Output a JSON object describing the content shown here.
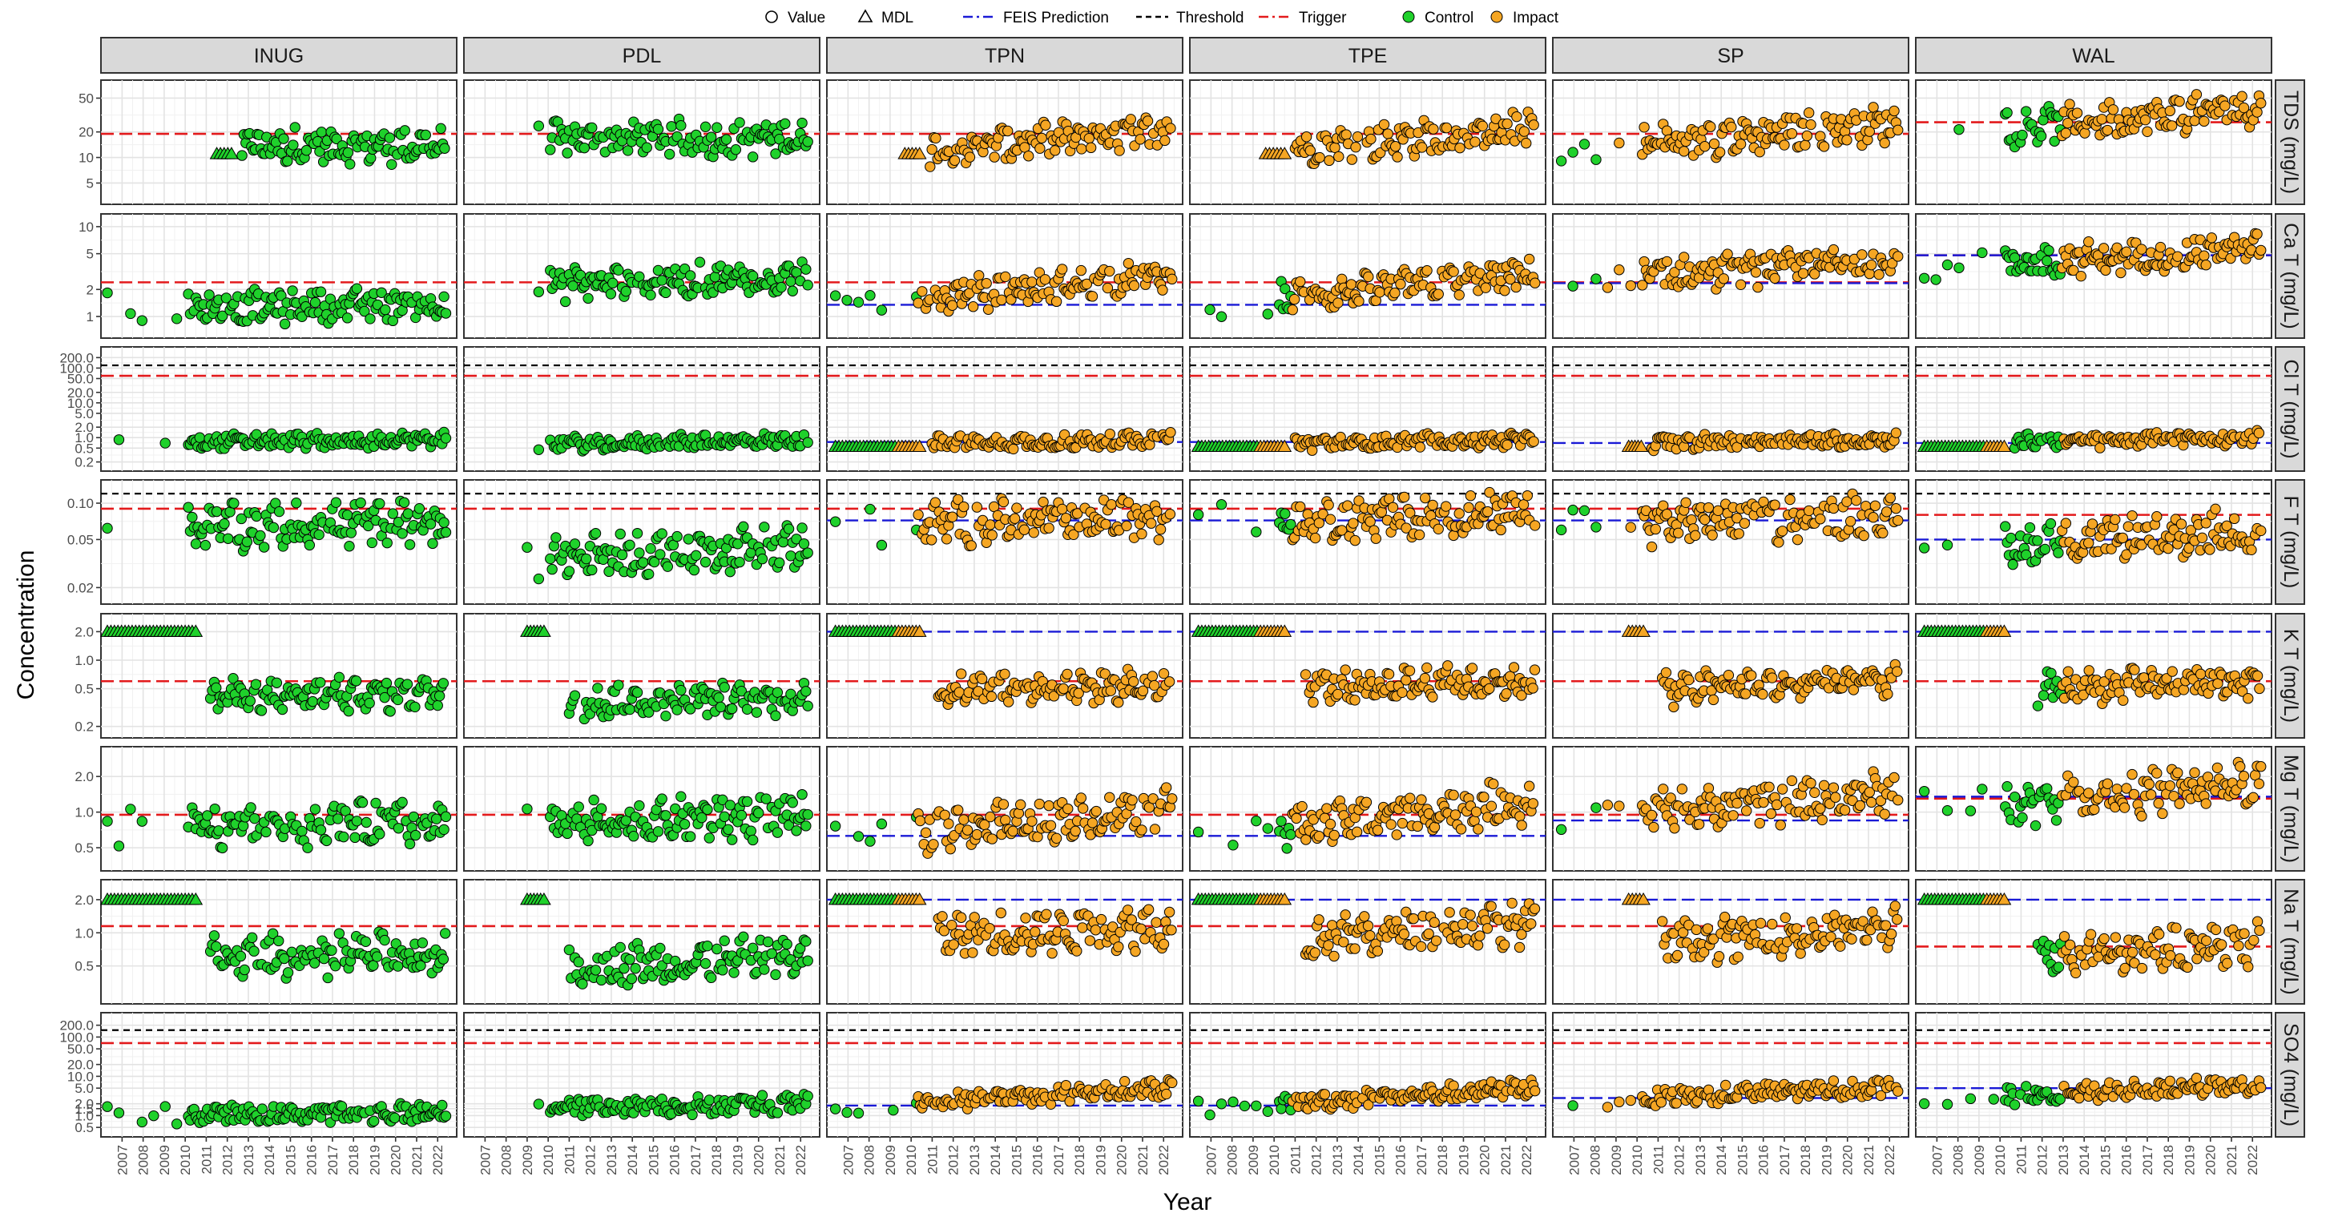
{
  "chart_data": {
    "type": "scatter",
    "xlabel": "Year",
    "ylabel": "Concentration",
    "x_ticks": [
      "2007",
      "2008",
      "2009",
      "2010",
      "2011",
      "2012",
      "2013",
      "2014",
      "2015",
      "2016",
      "2017",
      "2018",
      "2019",
      "2020",
      "2021",
      "2022"
    ],
    "x_range": [
      2006.3,
      2022.6
    ],
    "y_scale": "log",
    "grid": true,
    "legend_position": "top",
    "legend": [
      {
        "label": "Value",
        "kind": "shape",
        "shape": "circle"
      },
      {
        "label": "MDL",
        "kind": "shape",
        "shape": "triangle"
      },
      {
        "label": "FEIS Prediction",
        "kind": "line",
        "color": "#1a1ad6",
        "dash": "longdash"
      },
      {
        "label": "Threshold",
        "kind": "line",
        "color": "#000000",
        "dash": "dash"
      },
      {
        "label": "Trigger",
        "kind": "line",
        "color": "#e31a1c",
        "dash": "longdash"
      },
      {
        "label": "Control",
        "kind": "point",
        "color": "#1fd12b"
      },
      {
        "label": "Impact",
        "kind": "point",
        "color": "#f5a623"
      }
    ],
    "colors": {
      "control": "#1fd12b",
      "impact": "#f5a623",
      "feis": "#1a1ad6",
      "threshold": "#000000",
      "trigger": "#e31a1c"
    },
    "stations": [
      {
        "name": "INUG",
        "group": "control"
      },
      {
        "name": "PDL",
        "group": "control"
      },
      {
        "name": "TPN",
        "group": "impact",
        "impact_from": 2010.3
      },
      {
        "name": "TPE",
        "group": "impact",
        "impact_from": 2010.8
      },
      {
        "name": "SP",
        "group": "impact",
        "impact_from": 2008.5
      },
      {
        "name": "WAL",
        "group": "impact",
        "impact_from": 2012.9
      }
    ],
    "parameters": [
      {
        "name": "TDS (mg/L)",
        "ylim": [
          3.2,
          70
        ],
        "ticks": [
          5,
          10,
          20,
          50
        ],
        "tick_labels": [
          "5",
          "10",
          "20",
          "50"
        ],
        "trigger": 19,
        "threshold": null,
        "feis": [
          null,
          null,
          null,
          null,
          null,
          null
        ],
        "levels": [
          [
            14,
            14
          ],
          [
            17,
            17
          ],
          [
            10,
            20
          ],
          [
            10,
            22
          ],
          [
            12,
            25
          ],
          [
            18,
            38
          ]
        ],
        "spread": 0.18,
        "mdl": {
          "value": 11,
          "INUG": [
            2011.5,
            2012.2
          ],
          "TPN": [
            2009.7,
            2010.4
          ],
          "TPE": [
            2009.6,
            2010.5
          ]
        },
        "first_year": {
          "INUG": 2006.3,
          "PDL": 2009.0,
          "TPN": 2006.4,
          "TPE": 2006.4,
          "SP": 2006.4,
          "WAL": 2006.4
        },
        "trigger_per_station": {
          "WAL": 26
        }
      },
      {
        "name": "Ca T (mg/L)",
        "ylim": [
          0.65,
          12
        ],
        "ticks": [
          1,
          2,
          5,
          10
        ],
        "tick_labels": [
          "1",
          "2",
          "5",
          "10"
        ],
        "trigger": 2.4,
        "threshold": null,
        "feis": [
          null,
          null,
          1.35,
          1.35,
          2.35,
          4.8
        ],
        "levels": [
          [
            1.2,
            1.4
          ],
          [
            2.1,
            2.8
          ],
          [
            1.3,
            2.8
          ],
          [
            1.3,
            2.9
          ],
          [
            2.4,
            4.2
          ],
          [
            3.4,
            5.6
          ]
        ],
        "spread": 0.15,
        "mdl": {},
        "first_year": {
          "INUG": 2006.3,
          "PDL": 2009.0,
          "TPN": 2006.4,
          "TPE": 2006.4,
          "SP": 2006.4,
          "WAL": 2006.4
        },
        "trigger_per_station": {
          "SP": 2.4,
          "WAL": 4.8
        }
      },
      {
        "name": "Cl T (mg/L)",
        "ylim": [
          0.15,
          280
        ],
        "ticks": [
          0.2,
          0.5,
          1,
          2,
          5,
          10,
          20,
          50,
          100,
          200
        ],
        "tick_labels": [
          "0.2",
          "0.5",
          "1.0",
          "2.0",
          "5.0",
          "10.0",
          "20.0",
          "50.0",
          "100.0",
          "200.0"
        ],
        "trigger": 60,
        "threshold": 120,
        "feis": [
          null,
          null,
          0.75,
          0.75,
          0.7,
          0.7
        ],
        "levels": [
          [
            0.75,
            0.85
          ],
          [
            0.6,
            0.85
          ],
          [
            0.65,
            0.85
          ],
          [
            0.65,
            0.85
          ],
          [
            0.65,
            0.9
          ],
          [
            0.7,
            1.0
          ]
        ],
        "spread": 0.18,
        "mdl": {
          "value": 0.55,
          "TPN": [
            2006.4,
            2010.4
          ],
          "TPE": [
            2006.4,
            2010.5
          ],
          "SP": [
            2009.6,
            2010.2
          ],
          "WAL": [
            2006.4,
            2010.2
          ]
        },
        "first_year": {
          "INUG": 2006.3,
          "PDL": 2009.0,
          "TPN": 2006.4,
          "TPE": 2006.4,
          "SP": 2006.4,
          "WAL": 2006.4
        },
        "trigger_per_station": {}
      },
      {
        "name": "F T (mg/L)",
        "ylim": [
          0.016,
          0.14
        ],
        "ticks": [
          0.02,
          0.05,
          0.1
        ],
        "tick_labels": [
          "0.02",
          "0.05",
          "0.10"
        ],
        "trigger": 0.09,
        "threshold": 0.12,
        "feis": [
          null,
          null,
          0.072,
          0.072,
          0.072,
          0.05
        ],
        "levels": [
          [
            0.06,
            0.07
          ],
          [
            0.032,
            0.045
          ],
          [
            0.065,
            0.075
          ],
          [
            0.07,
            0.08
          ],
          [
            0.065,
            0.08
          ],
          [
            0.04,
            0.06
          ]
        ],
        "spread": 0.15,
        "mdl": {},
        "first_year": {
          "INUG": 2006.3,
          "PDL": 2009.0,
          "TPN": 2006.4,
          "TPE": 2006.4,
          "SP": 2006.4,
          "WAL": 2006.4
        },
        "trigger_per_station": {
          "WAL": 0.08
        }
      },
      {
        "name": "K T (mg/L)",
        "ylim": [
          0.17,
          2.7
        ],
        "ticks": [
          0.2,
          0.5,
          1,
          2
        ],
        "tick_labels": [
          "0.2",
          "0.5",
          "1.0",
          "2.0"
        ],
        "trigger": 0.6,
        "threshold": null,
        "feis": [
          null,
          null,
          2.0,
          2.0,
          2.0,
          2.0
        ],
        "levels": [
          [
            0.4,
            0.45
          ],
          [
            0.33,
            0.4
          ],
          [
            0.45,
            0.55
          ],
          [
            0.5,
            0.6
          ],
          [
            0.45,
            0.6
          ],
          [
            0.45,
            0.6
          ]
        ],
        "spread": 0.14,
        "mdl": {
          "value": 2.0,
          "INUG": [
            2006.3,
            2010.5
          ],
          "PDL": [
            2009.0,
            2009.8
          ],
          "TPN": [
            2006.4,
            2010.4
          ],
          "TPE": [
            2006.4,
            2010.5
          ],
          "SP": [
            2009.6,
            2010.3
          ],
          "WAL": [
            2006.4,
            2010.2
          ]
        },
        "first_year": {
          "INUG": 2011.2,
          "PDL": 2011.0,
          "TPN": 2011.3,
          "TPE": 2011.5,
          "SP": 2011.2,
          "WAL": 2011.8
        },
        "trigger_per_station": {}
      },
      {
        "name": "Mg T (mg/L)",
        "ylim": [
          0.35,
          3.2
        ],
        "ticks": [
          0.5,
          1,
          2
        ],
        "tick_labels": [
          "0.5",
          "1.0",
          "2.0"
        ],
        "trigger": 0.95,
        "threshold": null,
        "feis": [
          null,
          null,
          0.63,
          0.63,
          0.85,
          1.35
        ],
        "levels": [
          [
            0.7,
            0.85
          ],
          [
            0.75,
            0.95
          ],
          [
            0.6,
            1.05
          ],
          [
            0.6,
            1.25
          ],
          [
            0.85,
            1.45
          ],
          [
            1.0,
            1.75
          ]
        ],
        "spread": 0.15,
        "mdl": {},
        "first_year": {
          "INUG": 2006.3,
          "PDL": 2009.0,
          "TPN": 2006.4,
          "TPE": 2006.4,
          "SP": 2006.4,
          "WAL": 2006.4
        },
        "trigger_per_station": {
          "WAL": 1.3
        }
      },
      {
        "name": "Na T (mg/L)",
        "ylim": [
          0.25,
          2.7
        ],
        "ticks": [
          0.5,
          1,
          2
        ],
        "tick_labels": [
          "0.5",
          "1.0",
          "2.0"
        ],
        "trigger": 1.15,
        "threshold": null,
        "feis": [
          null,
          null,
          2.0,
          2.0,
          2.0,
          2.0
        ],
        "levels": [
          [
            0.6,
            0.65
          ],
          [
            0.45,
            0.6
          ],
          [
            0.9,
            1.1
          ],
          [
            0.8,
            1.2
          ],
          [
            0.7,
            1.1
          ],
          [
            0.55,
            0.8
          ]
        ],
        "spread": 0.16,
        "mdl": {
          "value": 2.0,
          "INUG": [
            2006.3,
            2010.5
          ],
          "PDL": [
            2009.0,
            2009.8
          ],
          "TPN": [
            2006.4,
            2010.4
          ],
          "TPE": [
            2006.4,
            2010.5
          ],
          "SP": [
            2009.6,
            2010.3
          ],
          "WAL": [
            2006.4,
            2010.2
          ]
        },
        "first_year": {
          "INUG": 2011.2,
          "PDL": 2011.0,
          "TPN": 2011.3,
          "TPE": 2011.5,
          "SP": 2011.2,
          "WAL": 2011.8
        },
        "trigger_per_station": {
          "WAL": 0.75
        }
      },
      {
        "name": "SO4 (mg/L)",
        "ylim": [
          0.38,
          300
        ],
        "ticks": [
          0.5,
          1,
          1.5,
          2,
          5,
          10,
          20,
          50,
          100,
          200
        ],
        "tick_labels": [
          "0.5",
          "1.0",
          "1.5",
          "2.0",
          "5.0",
          "10.0",
          "20.0",
          "50.0",
          "100.0",
          "200.0"
        ],
        "trigger": 70,
        "threshold": 150,
        "feis": [
          null,
          null,
          1.8,
          1.8,
          2.8,
          5.0
        ],
        "levels": [
          [
            1.0,
            1.2
          ],
          [
            1.5,
            2.0
          ],
          [
            1.5,
            5.0
          ],
          [
            1.5,
            5.0
          ],
          [
            2.2,
            5.5
          ],
          [
            2.5,
            6.0
          ]
        ],
        "spread": 0.2,
        "mdl": {},
        "first_year": {
          "INUG": 2006.3,
          "PDL": 2009.0,
          "TPN": 2006.4,
          "TPE": 2006.4,
          "SP": 2006.4,
          "WAL": 2006.4
        },
        "trigger_per_station": {}
      }
    ]
  }
}
